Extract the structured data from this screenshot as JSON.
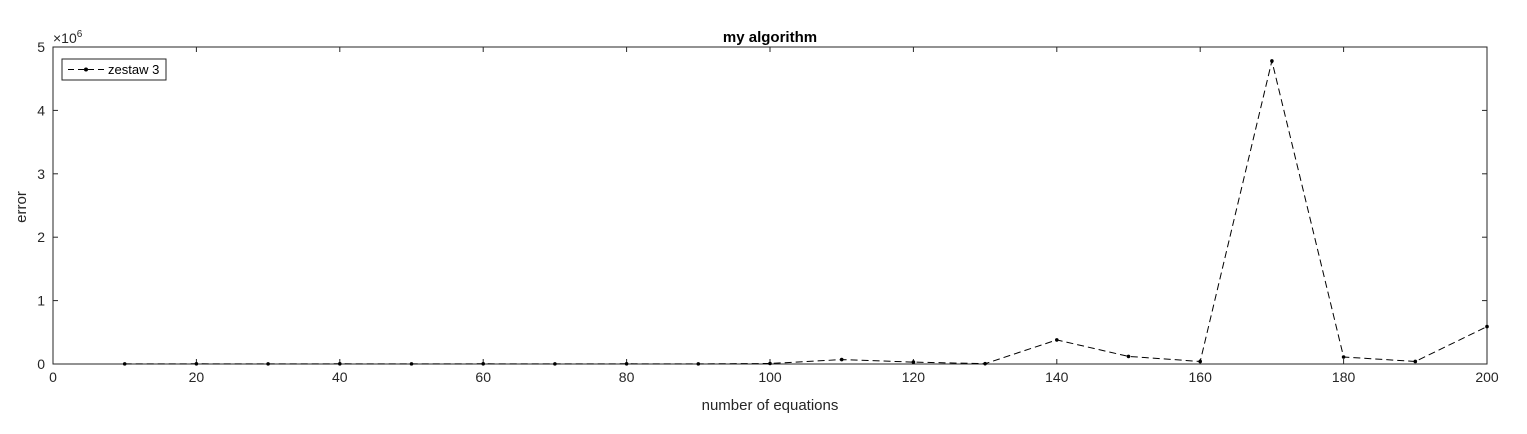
{
  "chart_data": {
    "type": "line",
    "title": "my algorithm",
    "xlabel": "number of equations",
    "ylabel": "error",
    "xlim": [
      0,
      200
    ],
    "ylim": [
      0,
      5000000
    ],
    "x_ticks": [
      0,
      20,
      40,
      60,
      80,
      100,
      120,
      140,
      160,
      180,
      200
    ],
    "y_ticks": [
      0,
      1000000,
      2000000,
      3000000,
      4000000,
      5000000
    ],
    "y_tick_labels": [
      "0",
      "1",
      "2",
      "3",
      "4",
      "5"
    ],
    "y_exponent_base": "×10",
    "y_exponent_power": "6",
    "grid": false,
    "legend_position": "top-left",
    "line_style": "dashed",
    "marker": "dot",
    "series_color": "#000000",
    "x": [
      10,
      20,
      30,
      40,
      50,
      60,
      70,
      80,
      90,
      100,
      110,
      120,
      130,
      140,
      150,
      160,
      170,
      180,
      190,
      200
    ],
    "series": [
      {
        "name": "zestaw 3",
        "values": [
          2000,
          3000,
          2000,
          3000,
          2000,
          3000,
          2000,
          3000,
          2000,
          8000,
          70000,
          30000,
          5000,
          380000,
          120000,
          40000,
          4780000,
          110000,
          40000,
          590000
        ]
      }
    ]
  }
}
